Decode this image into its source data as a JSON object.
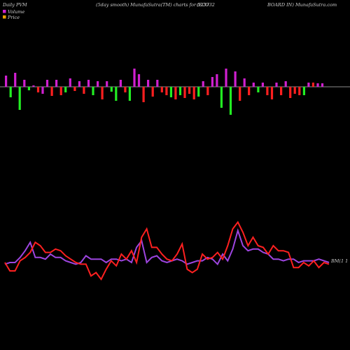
{
  "header": {
    "left": "Daily PVM",
    "mid": "(5day smooth) MunafaSutra(TM) charts for 523732",
    "right_a": "(ECO",
    "right_b": "BOARD IN) MunafaSutra.com"
  },
  "legend": [
    {
      "label": "Volume",
      "color": "#d020d0"
    },
    {
      "label": "Price",
      "color": "#e8a000"
    }
  ],
  "price_end_label": "BM(1 1",
  "colors": {
    "green": "#22ee22",
    "red": "#ff1f1f",
    "magenta": "#d020d0",
    "baseline": "#bbbbbb",
    "price_line": "#ff2020",
    "volume_line": "#9d45e0"
  },
  "chart_data": {
    "type": "bar",
    "xlabel": "",
    "ylabel": "",
    "volume_bars": {
      "values": [
        16,
        -15,
        20,
        -33,
        10,
        -5,
        2,
        -8,
        -10,
        10,
        -13,
        10,
        -12,
        -8,
        12,
        -6,
        8,
        -10,
        10,
        -12,
        8,
        -18,
        8,
        -7,
        -20,
        10,
        -8,
        -20,
        26,
        18,
        -22,
        10,
        -14,
        10,
        -8,
        -12,
        -15,
        -18,
        -12,
        -16,
        -10,
        -18,
        -14,
        8,
        -12,
        14,
        18,
        -30,
        26,
        -40,
        22,
        -20,
        12,
        -12,
        6,
        -8,
        6,
        -12,
        -18,
        6,
        -12,
        8,
        -16,
        -10,
        -12,
        -12,
        6,
        6,
        5,
        5
      ],
      "colors": [
        "m",
        "g",
        "m",
        "g",
        "m",
        "g",
        "m",
        "r",
        "m",
        "m",
        "r",
        "m",
        "r",
        "g",
        "m",
        "r",
        "m",
        "r",
        "m",
        "g",
        "m",
        "r",
        "m",
        "g",
        "g",
        "m",
        "r",
        "g",
        "m",
        "m",
        "r",
        "m",
        "r",
        "m",
        "r",
        "r",
        "g",
        "r",
        "g",
        "r",
        "r",
        "r",
        "g",
        "m",
        "r",
        "m",
        "m",
        "g",
        "m",
        "g",
        "m",
        "r",
        "m",
        "r",
        "m",
        "g",
        "m",
        "r",
        "r",
        "m",
        "r",
        "m",
        "r",
        "r",
        "r",
        "g",
        "m",
        "r",
        "m",
        "m"
      ]
    },
    "price_series": [
      0,
      -10,
      -10,
      2,
      6,
      12,
      24,
      20,
      12,
      12,
      16,
      14,
      8,
      4,
      0,
      -2,
      -2,
      -16,
      -12,
      -20,
      -8,
      2,
      -4,
      10,
      4,
      14,
      0,
      30,
      40,
      18,
      18,
      10,
      4,
      2,
      10,
      22,
      -8,
      -12,
      -8,
      10,
      4,
      6,
      12,
      4,
      20,
      40,
      48,
      36,
      20,
      30,
      20,
      18,
      10,
      20,
      14,
      14,
      12,
      -6,
      -6,
      0,
      -4,
      2,
      -6,
      0,
      -2
    ],
    "volume_series": [
      -2,
      0,
      0,
      6,
      14,
      24,
      6,
      6,
      4,
      10,
      6,
      6,
      2,
      0,
      -2,
      0,
      8,
      4,
      4,
      4,
      0,
      4,
      4,
      2,
      4,
      0,
      18,
      26,
      0,
      6,
      8,
      2,
      0,
      2,
      4,
      2,
      -2,
      0,
      2,
      2,
      6,
      4,
      -2,
      10,
      2,
      16,
      38,
      20,
      14,
      16,
      16,
      12,
      10,
      4,
      4,
      2,
      4,
      4,
      0,
      2,
      2,
      2,
      4,
      2,
      0
    ]
  }
}
